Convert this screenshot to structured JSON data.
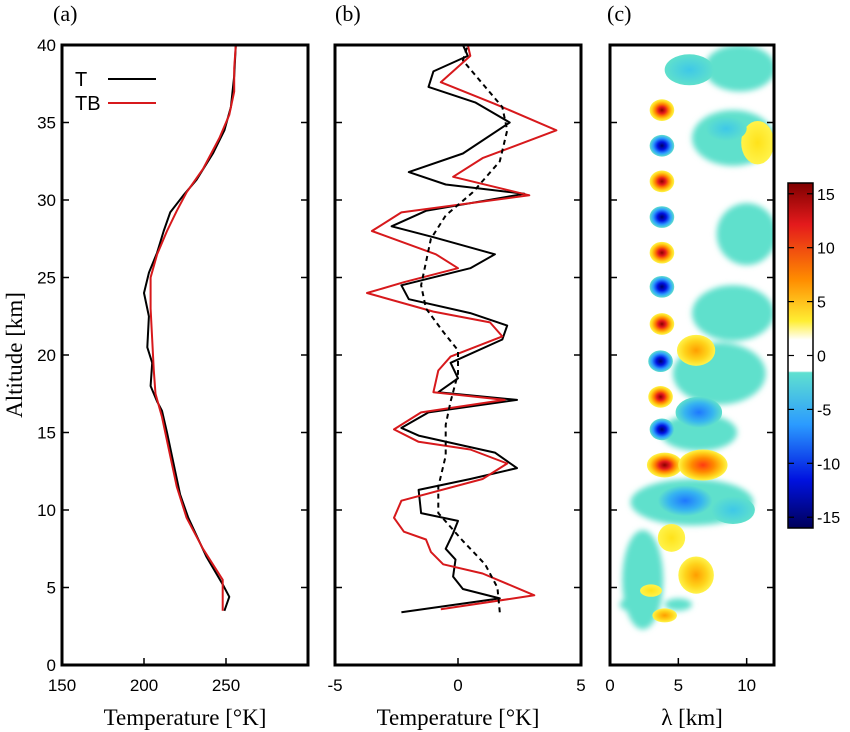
{
  "chart_data": [
    {
      "type": "line",
      "panel_label": "(a)",
      "xlabel": "Temperature [°K]",
      "ylabel": "Altitude [km]",
      "xlim": [
        150,
        300
      ],
      "ylim": [
        0,
        40
      ],
      "x_ticks": [
        "150",
        "200",
        "250"
      ],
      "y_ticks": [
        "0",
        "5",
        "10",
        "15",
        "20",
        "25",
        "30",
        "35",
        "40"
      ],
      "legend": {
        "placement": "top-left",
        "entries": [
          "T",
          "TB"
        ]
      },
      "series": [
        {
          "name": "T",
          "color": "#000000",
          "points": [
            [
              249,
              3.5
            ],
            [
              252,
              4.4
            ],
            [
              248,
              5.2
            ],
            [
              238,
              7
            ],
            [
              227,
              9.5
            ],
            [
              222,
              11
            ],
            [
              219,
              12.5
            ],
            [
              214,
              15
            ],
            [
              211,
              16.4
            ],
            [
              208,
              17
            ],
            [
              204,
              18
            ],
            [
              205,
              19.5
            ],
            [
              202,
              20.5
            ],
            [
              203,
              22.5
            ],
            [
              200,
              24
            ],
            [
              203,
              25.3
            ],
            [
              208,
              26.6
            ],
            [
              212,
              28
            ],
            [
              216,
              29.2
            ],
            [
              224,
              30.3
            ],
            [
              232,
              31.3
            ],
            [
              242,
              33
            ],
            [
              249,
              34.5
            ],
            [
              253,
              36
            ],
            [
              255,
              38
            ],
            [
              256,
              40
            ]
          ]
        },
        {
          "name": "TB",
          "color": "#d7191c",
          "points": [
            [
              248,
              3.5
            ],
            [
              248,
              5.5
            ],
            [
              236,
              7.5
            ],
            [
              226,
              9.5
            ],
            [
              220,
              11.5
            ],
            [
              216,
              13.5
            ],
            [
              211,
              16
            ],
            [
              207,
              17.5
            ],
            [
              206,
              19
            ],
            [
              205,
              21
            ],
            [
              204,
              23
            ],
            [
              204,
              25
            ],
            [
              208,
              26.5
            ],
            [
              214,
              28
            ],
            [
              220,
              29.3
            ],
            [
              226,
              30.5
            ],
            [
              236,
              32
            ],
            [
              246,
              34
            ],
            [
              252,
              35.5
            ],
            [
              255,
              37
            ],
            [
              255,
              38.5
            ],
            [
              256,
              40
            ]
          ]
        }
      ]
    },
    {
      "type": "line",
      "panel_label": "(b)",
      "xlabel": "Temperature [°K]",
      "xlim": [
        -5,
        5
      ],
      "ylim": [
        0,
        40
      ],
      "x_ticks": [
        "-5",
        "0",
        "5"
      ],
      "series": [
        {
          "name": "black",
          "color": "#000000",
          "style": "solid",
          "points": [
            [
              -2.3,
              3.4
            ],
            [
              1.7,
              4.3
            ],
            [
              0.2,
              4.9
            ],
            [
              -0.2,
              5.7
            ],
            [
              -0.1,
              6.8
            ],
            [
              -0.5,
              7.5
            ],
            [
              -0.2,
              8.5
            ],
            [
              0,
              9.3
            ],
            [
              -1.5,
              9.8
            ],
            [
              -1.6,
              11.3
            ],
            [
              0.5,
              12
            ],
            [
              2.4,
              12.7
            ],
            [
              1.5,
              13.7
            ],
            [
              -1.6,
              14.8
            ],
            [
              -2.3,
              15.3
            ],
            [
              -1.2,
              16.3
            ],
            [
              2.4,
              17.1
            ],
            [
              -0.8,
              17.6
            ],
            [
              0,
              18.5
            ],
            [
              -0.3,
              19.5
            ],
            [
              1.8,
              21
            ],
            [
              2.0,
              21.9
            ],
            [
              0.5,
              22.7
            ],
            [
              -2.0,
              23.6
            ],
            [
              -2.3,
              24.5
            ],
            [
              0.5,
              25.6
            ],
            [
              1.5,
              26.5
            ],
            [
              -1.0,
              27.6
            ],
            [
              -2.7,
              28.3
            ],
            [
              -1.3,
              29.3
            ],
            [
              2.7,
              30.4
            ],
            [
              -0.5,
              31.0
            ],
            [
              -2.0,
              31.8
            ],
            [
              0.2,
              33.0
            ],
            [
              2.1,
              35
            ],
            [
              0.7,
              36.3
            ],
            [
              -1.2,
              37.3
            ],
            [
              -1.0,
              38.3
            ],
            [
              0.4,
              39.3
            ],
            [
              0.2,
              40
            ]
          ]
        },
        {
          "name": "red",
          "color": "#d7191c",
          "style": "solid",
          "points": [
            [
              -0.7,
              3.6
            ],
            [
              3.1,
              4.5
            ],
            [
              1.0,
              5.9
            ],
            [
              -0.6,
              6.5
            ],
            [
              -1.1,
              7.3
            ],
            [
              -1.3,
              8.1
            ],
            [
              -2.2,
              8.6
            ],
            [
              -2.6,
              9.5
            ],
            [
              -2.3,
              10.6
            ],
            [
              1.0,
              12
            ],
            [
              2.0,
              13
            ],
            [
              0.5,
              13.9
            ],
            [
              -1.6,
              14.4
            ],
            [
              -2.6,
              15.2
            ],
            [
              -1.5,
              16.3
            ],
            [
              1.9,
              17.1
            ],
            [
              -1.0,
              17.6
            ],
            [
              -0.8,
              19.0
            ],
            [
              -0.3,
              19.9
            ],
            [
              1.8,
              21.2
            ],
            [
              1.3,
              22.1
            ],
            [
              -1.0,
              22.8
            ],
            [
              -3.7,
              24.0
            ],
            [
              -2.2,
              24.7
            ],
            [
              0.0,
              25.6
            ],
            [
              -0.9,
              26.5
            ],
            [
              -3.5,
              28.0
            ],
            [
              -2.3,
              29.2
            ],
            [
              2.9,
              30.3
            ],
            [
              -0.2,
              31.5
            ],
            [
              1.0,
              32.7
            ],
            [
              4.0,
              34.5
            ],
            [
              1.5,
              36.2
            ],
            [
              -0.7,
              37.6
            ],
            [
              0.5,
              39.3
            ],
            [
              0.4,
              40
            ]
          ]
        },
        {
          "name": "dashed",
          "color": "#000000",
          "style": "dashed",
          "points": [
            [
              1.7,
              3.4
            ],
            [
              1.6,
              5
            ],
            [
              1.1,
              6.5
            ],
            [
              0.2,
              8
            ],
            [
              -0.8,
              9.8
            ],
            [
              -0.8,
              11.5
            ],
            [
              -0.5,
              13.5
            ],
            [
              -0.5,
              15.5
            ],
            [
              -0.3,
              17
            ],
            [
              0.0,
              18.8
            ],
            [
              0.0,
              20.3
            ],
            [
              -0.6,
              21.5
            ],
            [
              -1.3,
              23
            ],
            [
              -1.5,
              24.5
            ],
            [
              -1.3,
              26
            ],
            [
              -1.1,
              27.5
            ],
            [
              -0.5,
              29
            ],
            [
              0.6,
              30.5
            ],
            [
              1.7,
              32.5
            ],
            [
              2.0,
              34.5
            ],
            [
              1.8,
              36
            ],
            [
              1.0,
              37.5
            ],
            [
              0.2,
              39
            ],
            [
              0.4,
              40
            ]
          ]
        }
      ]
    },
    {
      "type": "heatmap",
      "panel_label": "(c)",
      "xlabel": "λ [km]",
      "xlim": [
        0,
        12
      ],
      "ylim": [
        0,
        40
      ],
      "x_ticks": [
        "0",
        "5",
        "10"
      ],
      "colorbar": {
        "range": [
          -16,
          16
        ],
        "tick_labels": [
          "15",
          "10",
          "5",
          "0",
          "-5",
          "-10",
          "-15"
        ],
        "tick_values": [
          15,
          10,
          5,
          0,
          -5,
          -10,
          -15
        ]
      },
      "blobs": [
        {
          "x": 4,
          "y": 3.2,
          "rx": 0.9,
          "ry": 0.45,
          "v": 5
        },
        {
          "x": 3,
          "y": 4.8,
          "rx": 0.8,
          "ry": 0.4,
          "v": 3
        },
        {
          "x": 6.3,
          "y": 5.8,
          "rx": 1.3,
          "ry": 1.2,
          "v": 7
        },
        {
          "x": 4.5,
          "y": 8.2,
          "rx": 1.0,
          "ry": 0.9,
          "v": 4
        },
        {
          "x": 5.5,
          "y": 10.6,
          "rx": 2.0,
          "ry": 1.0,
          "v": -8
        },
        {
          "x": 9.0,
          "y": 10.0,
          "rx": 1.6,
          "ry": 0.9,
          "v": -5
        },
        {
          "x": 4.0,
          "y": 12.9,
          "rx": 1.3,
          "ry": 0.8,
          "v": 15
        },
        {
          "x": 6.8,
          "y": 12.9,
          "rx": 1.8,
          "ry": 1.0,
          "v": 10
        },
        {
          "x": 3.8,
          "y": 15.2,
          "rx": 0.9,
          "ry": 0.7,
          "v": -15
        },
        {
          "x": 6.5,
          "y": 16.3,
          "rx": 1.7,
          "ry": 1.0,
          "v": -7
        },
        {
          "x": 3.7,
          "y": 17.3,
          "rx": 0.9,
          "ry": 0.7,
          "v": 14
        },
        {
          "x": 3.7,
          "y": 19.6,
          "rx": 0.9,
          "ry": 0.7,
          "v": -15
        },
        {
          "x": 6.3,
          "y": 20.3,
          "rx": 1.4,
          "ry": 1.0,
          "v": 5
        },
        {
          "x": 3.8,
          "y": 22.0,
          "rx": 0.9,
          "ry": 0.7,
          "v": 14
        },
        {
          "x": 3.8,
          "y": 24.4,
          "rx": 0.9,
          "ry": 0.7,
          "v": -15
        },
        {
          "x": 3.8,
          "y": 26.6,
          "rx": 0.9,
          "ry": 0.7,
          "v": 15
        },
        {
          "x": 3.8,
          "y": 28.9,
          "rx": 0.9,
          "ry": 0.7,
          "v": -15
        },
        {
          "x": 3.8,
          "y": 31.2,
          "rx": 0.9,
          "ry": 0.7,
          "v": 15
        },
        {
          "x": 3.8,
          "y": 33.5,
          "rx": 0.9,
          "ry": 0.7,
          "v": -15
        },
        {
          "x": 3.8,
          "y": 35.8,
          "rx": 0.9,
          "ry": 0.7,
          "v": 15
        },
        {
          "x": 5.8,
          "y": 38.4,
          "rx": 1.8,
          "ry": 1.0,
          "v": -3
        },
        {
          "x": 10.8,
          "y": 33.7,
          "rx": 1.2,
          "ry": 1.4,
          "v": 3
        },
        {
          "x": 8.5,
          "y": 34.6,
          "rx": 1.5,
          "ry": 0.8,
          "v": -3
        }
      ],
      "teal_regions": [
        {
          "x": 9.5,
          "y": 38.5,
          "rx": 2.6,
          "ry": 1.5
        },
        {
          "x": 9.0,
          "y": 34.0,
          "rx": 3.0,
          "ry": 1.8
        },
        {
          "x": 10.0,
          "y": 27.8,
          "rx": 2.2,
          "ry": 2.0
        },
        {
          "x": 9.0,
          "y": 22.7,
          "rx": 3.0,
          "ry": 1.8
        },
        {
          "x": 8.0,
          "y": 18.8,
          "rx": 3.4,
          "ry": 2.0
        },
        {
          "x": 6.5,
          "y": 15.0,
          "rx": 2.8,
          "ry": 1.2
        },
        {
          "x": 6.0,
          "y": 10.5,
          "rx": 4.5,
          "ry": 1.5
        },
        {
          "x": 2.4,
          "y": 5.5,
          "rx": 1.5,
          "ry": 3.2
        },
        {
          "x": 2.0,
          "y": 3.9,
          "rx": 1.3,
          "ry": 0.5
        },
        {
          "x": 5.0,
          "y": 3.9,
          "rx": 1.0,
          "ry": 0.4
        }
      ]
    }
  ]
}
